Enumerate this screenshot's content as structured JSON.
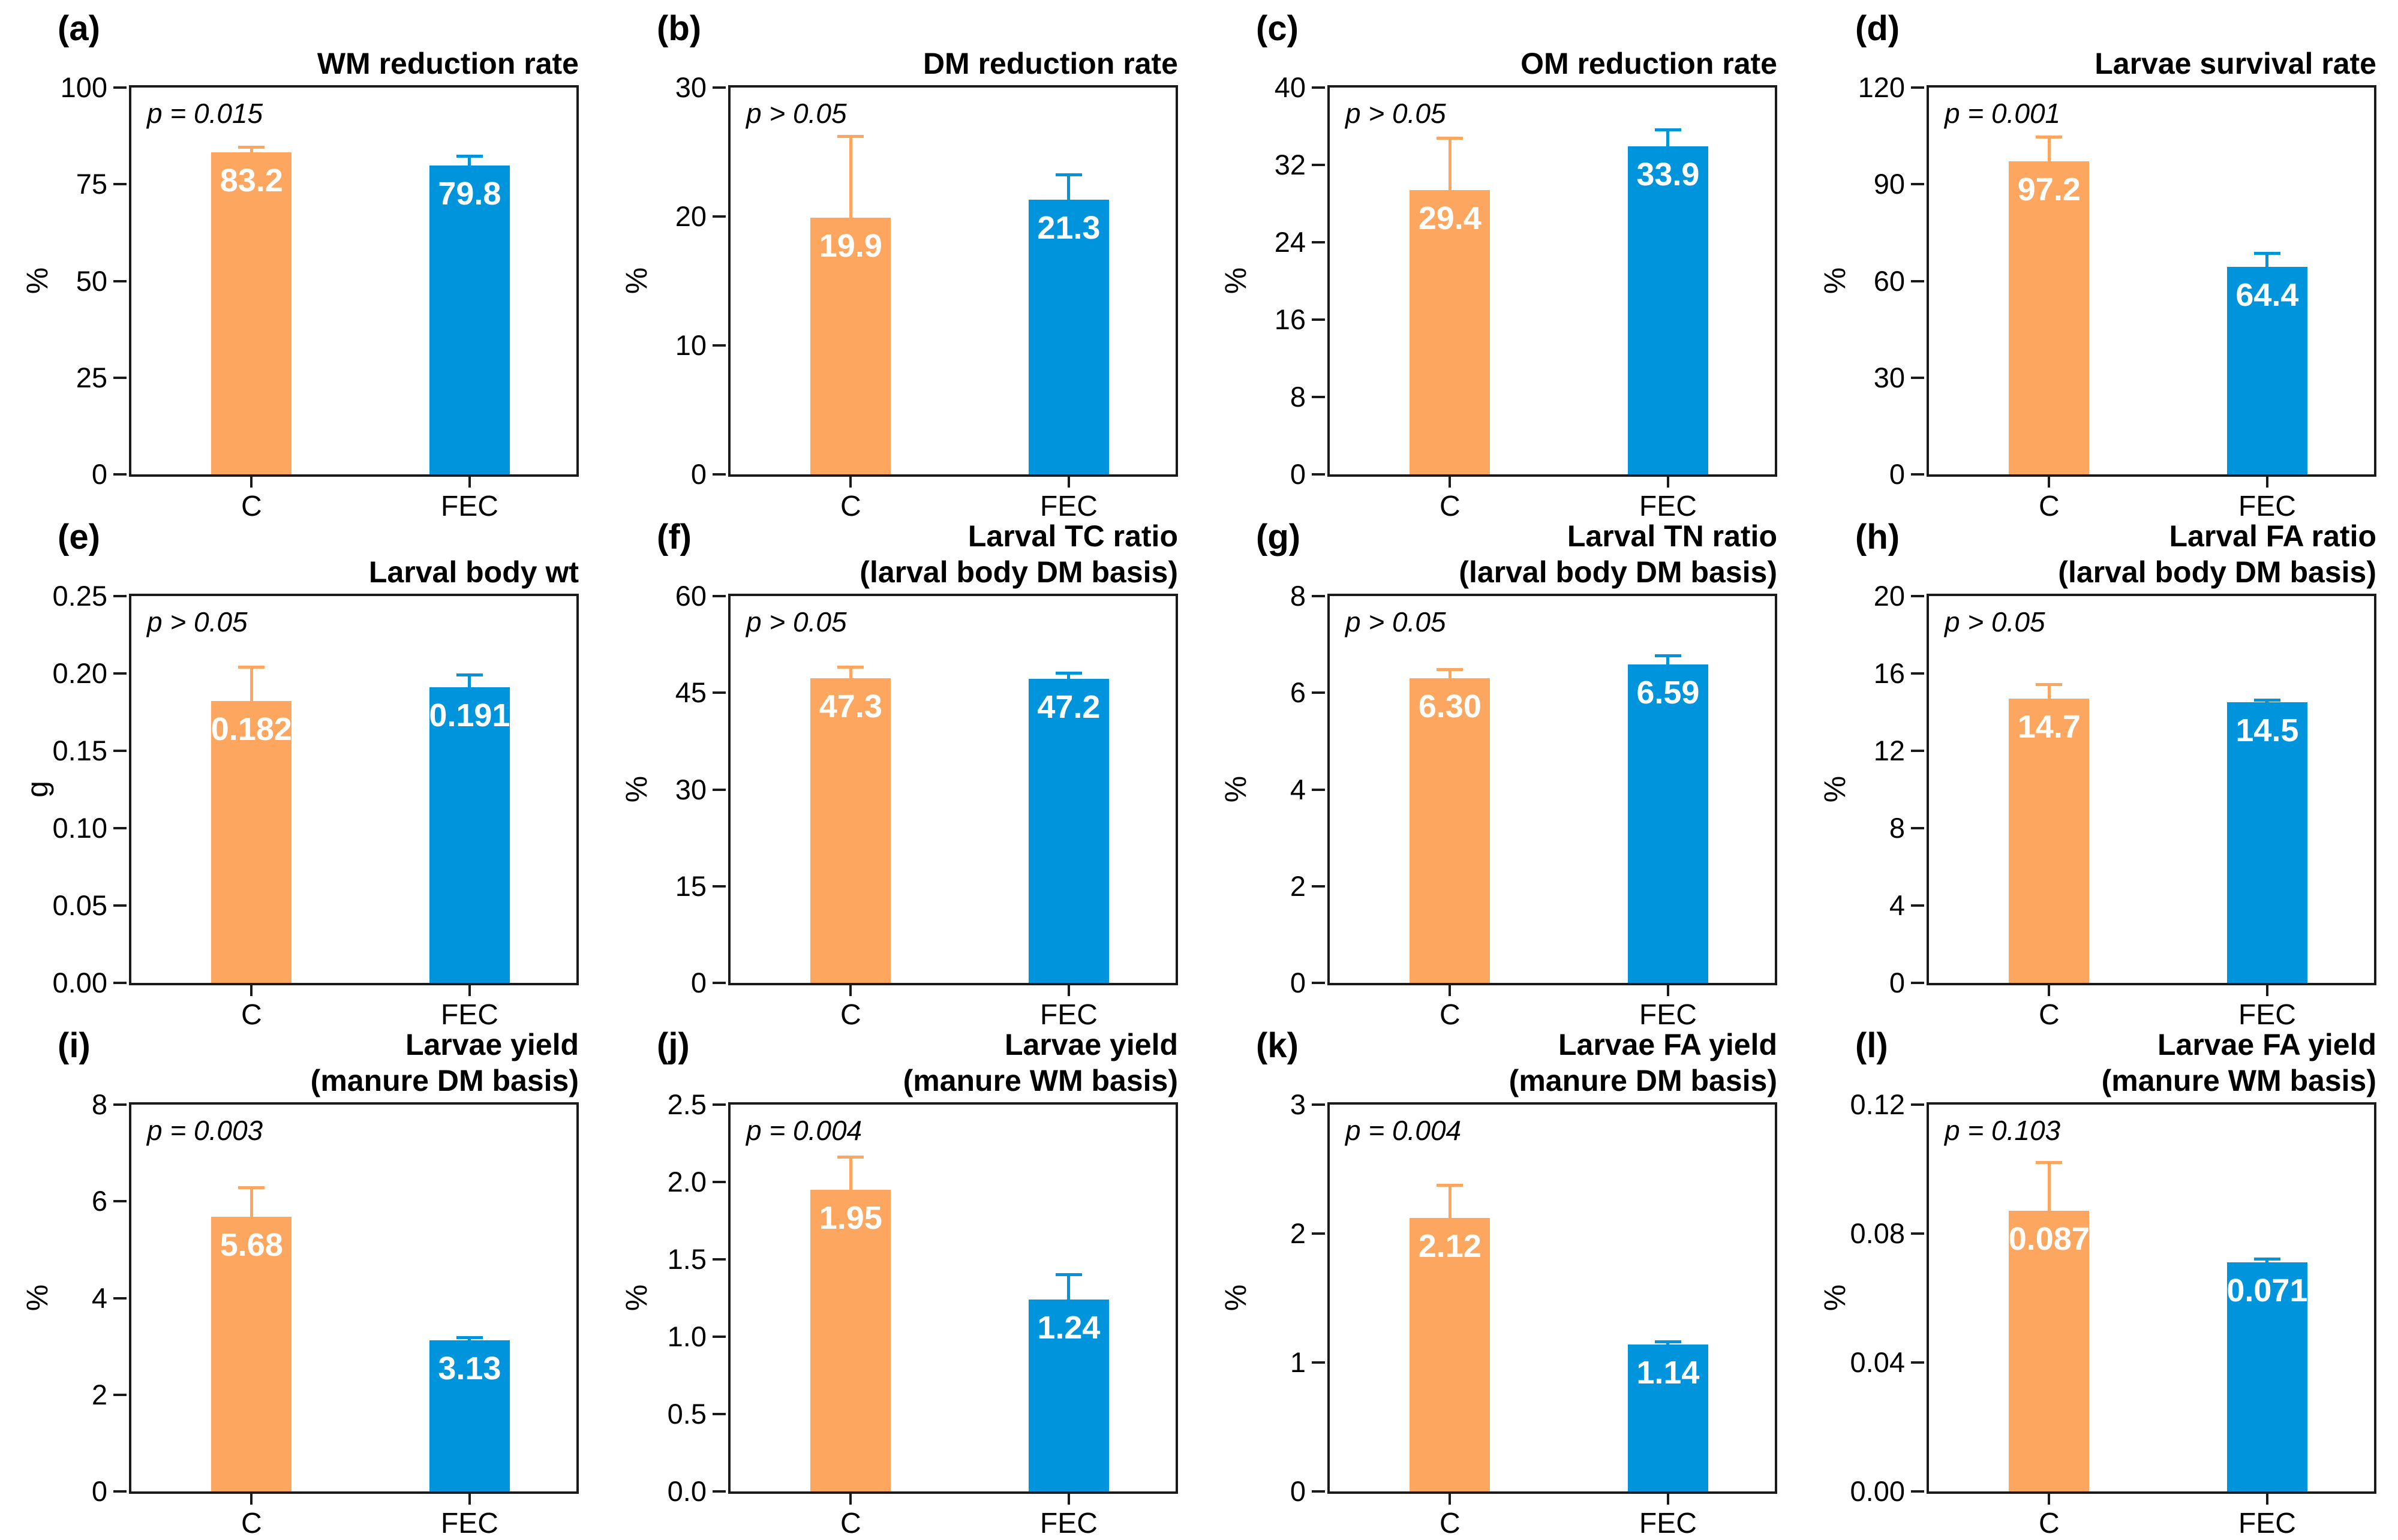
{
  "figure": {
    "categories": [
      "C",
      "FEC"
    ],
    "colors": {
      "c_bar": "#FCA660",
      "fec_bar": "#0094DC",
      "axis": "#1A1A1A",
      "value_label": "#FFFFFF",
      "background": "#FFFFFF"
    }
  },
  "chart_data": [
    {
      "type": "bar",
      "panel": "(a)",
      "title": "WM reduction rate",
      "subtitle": "",
      "p_label": "p = 0.015",
      "categories": [
        "C",
        "FEC"
      ],
      "values": [
        83.2,
        79.8
      ],
      "value_labels": [
        "83.2",
        "79.8"
      ],
      "errors": [
        1.3,
        2.4
      ],
      "ylabel": "%",
      "ylim": [
        0,
        100
      ],
      "yticks": [
        0,
        25,
        50,
        75,
        100
      ],
      "ytick_labels": [
        "0",
        "25",
        "50",
        "75",
        "100"
      ]
    },
    {
      "type": "bar",
      "panel": "(b)",
      "title": "DM reduction rate",
      "subtitle": "",
      "p_label": "p > 0.05",
      "categories": [
        "C",
        "FEC"
      ],
      "values": [
        19.9,
        21.3
      ],
      "value_labels": [
        "19.9",
        "21.3"
      ],
      "errors": [
        6.3,
        1.9
      ],
      "ylabel": "%",
      "ylim": [
        0,
        30
      ],
      "yticks": [
        0,
        10,
        20,
        30
      ],
      "ytick_labels": [
        "0",
        "10",
        "20",
        "30"
      ]
    },
    {
      "type": "bar",
      "panel": "(c)",
      "title": "OM reduction rate",
      "subtitle": "",
      "p_label": "p > 0.05",
      "categories": [
        "C",
        "FEC"
      ],
      "values": [
        29.4,
        33.9
      ],
      "value_labels": [
        "29.4",
        "33.9"
      ],
      "errors": [
        5.3,
        1.7
      ],
      "ylabel": "%",
      "ylim": [
        0,
        40
      ],
      "yticks": [
        0,
        8,
        16,
        24,
        32,
        40
      ],
      "ytick_labels": [
        "0",
        "8",
        "16",
        "24",
        "32",
        "40"
      ]
    },
    {
      "type": "bar",
      "panel": "(d)",
      "title": "Larvae survival rate",
      "subtitle": "",
      "p_label": "p = 0.001",
      "categories": [
        "C",
        "FEC"
      ],
      "values": [
        97.2,
        64.4
      ],
      "value_labels": [
        "97.2",
        "64.4"
      ],
      "errors": [
        7.3,
        4.1
      ],
      "ylabel": "%",
      "ylim": [
        0,
        120
      ],
      "yticks": [
        0,
        30,
        60,
        90,
        120
      ],
      "ytick_labels": [
        "0",
        "30",
        "60",
        "90",
        "120"
      ]
    },
    {
      "type": "bar",
      "panel": "(e)",
      "title": "Larval body wt",
      "subtitle": "",
      "p_label": "p > 0.05",
      "categories": [
        "C",
        "FEC"
      ],
      "values": [
        0.182,
        0.191
      ],
      "value_labels": [
        "0.182",
        "0.191"
      ],
      "errors": [
        0.022,
        0.008
      ],
      "ylabel": "g",
      "ylim": [
        0,
        0.25
      ],
      "yticks": [
        0,
        0.05,
        0.1,
        0.15,
        0.2,
        0.25
      ],
      "ytick_labels": [
        "0.00",
        "0.05",
        "0.10",
        "0.15",
        "0.20",
        "0.25"
      ]
    },
    {
      "type": "bar",
      "panel": "(f)",
      "title": "Larval TC ratio",
      "subtitle": "(larval body DM basis)",
      "p_label": "p > 0.05",
      "categories": [
        "C",
        "FEC"
      ],
      "values": [
        47.3,
        47.2
      ],
      "value_labels": [
        "47.3",
        "47.2"
      ],
      "errors": [
        1.6,
        0.8
      ],
      "ylabel": "%",
      "ylim": [
        0,
        60
      ],
      "yticks": [
        0,
        15,
        30,
        45,
        60
      ],
      "ytick_labels": [
        "0",
        "15",
        "30",
        "45",
        "60"
      ]
    },
    {
      "type": "bar",
      "panel": "(g)",
      "title": "Larval TN ratio",
      "subtitle": "(larval body DM basis)",
      "p_label": "p > 0.05",
      "categories": [
        "C",
        "FEC"
      ],
      "values": [
        6.3,
        6.59
      ],
      "value_labels": [
        "6.30",
        "6.59"
      ],
      "errors": [
        0.17,
        0.17
      ],
      "ylabel": "%",
      "ylim": [
        0,
        8
      ],
      "yticks": [
        0,
        2,
        4,
        6,
        8
      ],
      "ytick_labels": [
        "0",
        "2",
        "4",
        "6",
        "8"
      ]
    },
    {
      "type": "bar",
      "panel": "(h)",
      "title": "Larval FA ratio",
      "subtitle": "(larval body DM basis)",
      "p_label": "p > 0.05",
      "categories": [
        "C",
        "FEC"
      ],
      "values": [
        14.7,
        14.5
      ],
      "value_labels": [
        "14.7",
        "14.5"
      ],
      "errors": [
        0.7,
        0.12
      ],
      "ylabel": "%",
      "ylim": [
        0,
        20
      ],
      "yticks": [
        0,
        4,
        8,
        12,
        16,
        20
      ],
      "ytick_labels": [
        "0",
        "4",
        "8",
        "12",
        "16",
        "20"
      ]
    },
    {
      "type": "bar",
      "panel": "(i)",
      "title": "Larvae yield",
      "subtitle": "(manure DM basis)",
      "p_label": "p = 0.003",
      "categories": [
        "C",
        "FEC"
      ],
      "values": [
        5.68,
        3.13
      ],
      "value_labels": [
        "5.68",
        "3.13"
      ],
      "errors": [
        0.6,
        0.04
      ],
      "ylabel": "%",
      "ylim": [
        0,
        8
      ],
      "yticks": [
        0,
        2,
        4,
        6,
        8
      ],
      "ytick_labels": [
        "0",
        "2",
        "4",
        "6",
        "8"
      ]
    },
    {
      "type": "bar",
      "panel": "(j)",
      "title": "Larvae yield",
      "subtitle": "(manure WM basis)",
      "p_label": "p = 0.004",
      "categories": [
        "C",
        "FEC"
      ],
      "values": [
        1.95,
        1.24
      ],
      "value_labels": [
        "1.95",
        "1.24"
      ],
      "errors": [
        0.21,
        0.16
      ],
      "ylabel": "%",
      "ylim": [
        0,
        2.5
      ],
      "yticks": [
        0,
        0.5,
        1.0,
        1.5,
        2.0,
        2.5
      ],
      "ytick_labels": [
        "0.0",
        "0.5",
        "1.0",
        "1.5",
        "2.0",
        "2.5"
      ]
    },
    {
      "type": "bar",
      "panel": "(k)",
      "title": "Larvae FA yield",
      "subtitle": "(manure DM basis)",
      "p_label": "p = 0.004",
      "categories": [
        "C",
        "FEC"
      ],
      "values": [
        2.12,
        1.14
      ],
      "value_labels": [
        "2.12",
        "1.14"
      ],
      "errors": [
        0.25,
        0.02
      ],
      "ylabel": "%",
      "ylim": [
        0,
        3
      ],
      "yticks": [
        0,
        1,
        2,
        3
      ],
      "ytick_labels": [
        "0",
        "1",
        "2",
        "3"
      ]
    },
    {
      "type": "bar",
      "panel": "(l)",
      "title": "Larvae FA yield",
      "subtitle": "(manure WM basis)",
      "p_label": "p = 0.103",
      "categories": [
        "C",
        "FEC"
      ],
      "values": [
        0.087,
        0.071
      ],
      "value_labels": [
        "0.087",
        "0.071"
      ],
      "errors": [
        0.015,
        0.001
      ],
      "ylabel": "%",
      "ylim": [
        0,
        0.12
      ],
      "yticks": [
        0,
        0.04,
        0.08,
        0.12
      ],
      "ytick_labels": [
        "0.00",
        "0.04",
        "0.08",
        "0.12"
      ]
    }
  ]
}
